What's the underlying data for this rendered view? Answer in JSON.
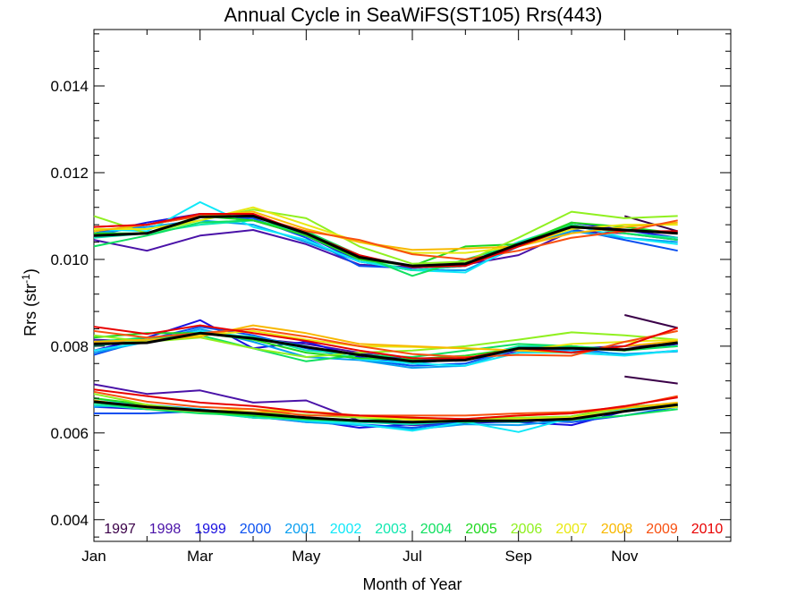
{
  "chart_data": {
    "type": "line",
    "title": "Annual Cycle in SeaWiFS(ST105) Rrs(443)",
    "xlabel": "Month of Year",
    "ylabel": "Rrs (str",
    "ylabel_sup": "-1",
    "ylabel_close": ")",
    "xlim": [
      1,
      13
    ],
    "ylim": [
      0.0035,
      0.0153
    ],
    "x_ticks": [
      {
        "value": 1,
        "label": "Jan"
      },
      {
        "value": 3,
        "label": "Mar"
      },
      {
        "value": 5,
        "label": "May"
      },
      {
        "value": 7,
        "label": "Jul"
      },
      {
        "value": 9,
        "label": "Sep"
      },
      {
        "value": 11,
        "label": "Nov"
      }
    ],
    "y_ticks": [
      {
        "value": 0.004,
        "label": "0.004"
      },
      {
        "value": 0.006,
        "label": "0.006"
      },
      {
        "value": 0.008,
        "label": "0.008"
      },
      {
        "value": 0.01,
        "label": "0.010"
      },
      {
        "value": 0.012,
        "label": "0.012"
      },
      {
        "value": 0.014,
        "label": "0.014"
      }
    ],
    "legend_position": "bottom",
    "x": [
      1,
      2,
      3,
      4,
      5,
      6,
      7,
      8,
      9,
      10,
      11,
      12
    ],
    "series": [
      {
        "name": "1997",
        "color": "#3a0048",
        "x": [
          11,
          12
        ],
        "upper": [
          0.011,
          0.01065
        ],
        "middle": [
          0.00872,
          0.00842
        ],
        "lower": [
          0.0073,
          0.00714
        ]
      },
      {
        "name": "1998",
        "color": "#4a12a8",
        "upper": [
          0.01045,
          0.0102,
          0.01055,
          0.01068,
          0.01035,
          0.00988,
          0.00982,
          0.00988,
          0.0101,
          0.01065,
          0.0106,
          0.01045
        ],
        "middle": [
          0.00815,
          0.0081,
          0.00835,
          0.00818,
          0.00805,
          0.00785,
          0.00768,
          0.0077,
          0.00785,
          0.00795,
          0.008,
          0.00805
        ],
        "lower": [
          0.00712,
          0.0069,
          0.00698,
          0.0067,
          0.00675,
          0.00628,
          0.00618,
          0.00622,
          0.00628,
          0.00638,
          0.0065,
          0.00665
        ]
      },
      {
        "name": "1999",
        "color": "#1a10e0",
        "upper": [
          0.0106,
          0.01085,
          0.01105,
          0.0109,
          0.01055,
          0.00995,
          0.00975,
          0.00985,
          0.0103,
          0.01085,
          0.01068,
          0.0105
        ],
        "middle": [
          0.0079,
          0.0082,
          0.0086,
          0.00795,
          0.0081,
          0.00775,
          0.0076,
          0.00772,
          0.0079,
          0.008,
          0.0079,
          0.00805
        ],
        "lower": [
          0.0066,
          0.00655,
          0.0065,
          0.00635,
          0.0063,
          0.00612,
          0.0062,
          0.00625,
          0.00625,
          0.00618,
          0.0065,
          0.00665
        ]
      },
      {
        "name": "2000",
        "color": "#0a50f0",
        "upper": [
          0.01055,
          0.0108,
          0.011,
          0.01095,
          0.0105,
          0.00985,
          0.0098,
          0.0099,
          0.0104,
          0.0107,
          0.01045,
          0.0102
        ],
        "middle": [
          0.0078,
          0.00815,
          0.00845,
          0.00825,
          0.00795,
          0.0077,
          0.00755,
          0.0076,
          0.00798,
          0.00795,
          0.0078,
          0.0079
        ],
        "lower": [
          0.00645,
          0.00645,
          0.0065,
          0.00638,
          0.00625,
          0.0062,
          0.00612,
          0.00625,
          0.0063,
          0.00625,
          0.0064,
          0.0066
        ]
      },
      {
        "name": "2001",
        "color": "#0a9ff0",
        "upper": [
          0.0106,
          0.01075,
          0.0109,
          0.0108,
          0.0104,
          0.00995,
          0.00975,
          0.00975,
          0.0103,
          0.01065,
          0.0105,
          0.0104
        ],
        "middle": [
          0.00785,
          0.0081,
          0.0084,
          0.0081,
          0.00775,
          0.00768,
          0.0075,
          0.00755,
          0.00795,
          0.0079,
          0.00782,
          0.00788
        ],
        "lower": [
          0.0066,
          0.00665,
          0.00655,
          0.0064,
          0.00625,
          0.00618,
          0.00608,
          0.0062,
          0.00618,
          0.0063,
          0.0065,
          0.0066
        ]
      },
      {
        "name": "2002",
        "color": "#10e8f8",
        "upper": [
          0.0107,
          0.01065,
          0.01132,
          0.01075,
          0.01045,
          0.00995,
          0.00975,
          0.0097,
          0.01035,
          0.0108,
          0.0105,
          0.01035
        ],
        "middle": [
          0.0079,
          0.0081,
          0.00835,
          0.0082,
          0.008,
          0.0077,
          0.0076,
          0.00755,
          0.00785,
          0.00785,
          0.00778,
          0.0079
        ],
        "lower": [
          0.0068,
          0.0066,
          0.00655,
          0.00642,
          0.00628,
          0.0062,
          0.00605,
          0.00625,
          0.00602,
          0.00635,
          0.00655,
          0.00665
        ]
      },
      {
        "name": "2003",
        "color": "#10e8b0",
        "upper": [
          0.0105,
          0.0106,
          0.0108,
          0.0109,
          0.0106,
          0.01,
          0.00975,
          0.00985,
          0.0104,
          0.0108,
          0.0106,
          0.0105
        ],
        "middle": [
          0.008,
          0.00815,
          0.0083,
          0.00822,
          0.0079,
          0.0078,
          0.00762,
          0.0077,
          0.008,
          0.008,
          0.00792,
          0.008
        ],
        "lower": [
          0.00665,
          0.00655,
          0.00648,
          0.00635,
          0.0063,
          0.00625,
          0.0062,
          0.00628,
          0.00625,
          0.00635,
          0.0065,
          0.00662
        ]
      },
      {
        "name": "2004",
        "color": "#10e060",
        "upper": [
          0.0103,
          0.01055,
          0.01085,
          0.0109,
          0.01065,
          0.0101,
          0.00962,
          0.01,
          0.01035,
          0.0108,
          0.0106,
          0.01045
        ],
        "middle": [
          0.0081,
          0.0082,
          0.00825,
          0.00795,
          0.00765,
          0.0078,
          0.00775,
          0.0079,
          0.00805,
          0.008,
          0.0079,
          0.008
        ],
        "lower": [
          0.0067,
          0.00655,
          0.00645,
          0.0064,
          0.00632,
          0.00628,
          0.00632,
          0.00625,
          0.0063,
          0.0063,
          0.0064,
          0.00655
        ]
      },
      {
        "name": "2005",
        "color": "#20d820",
        "upper": [
          0.0106,
          0.0106,
          0.011,
          0.0109,
          0.01055,
          0.01,
          0.00985,
          0.0103,
          0.01035,
          0.01085,
          0.01075,
          0.0106
        ],
        "middle": [
          0.0082,
          0.0083,
          0.0083,
          0.00815,
          0.00785,
          0.00772,
          0.0077,
          0.00778,
          0.00795,
          0.00795,
          0.0079,
          0.0081
        ],
        "lower": [
          0.0068,
          0.00665,
          0.0065,
          0.0064,
          0.00632,
          0.00628,
          0.00635,
          0.00628,
          0.00628,
          0.00638,
          0.0066,
          0.00668
        ]
      },
      {
        "name": "2006",
        "color": "#90f020",
        "upper": [
          0.011,
          0.0106,
          0.0109,
          0.01115,
          0.01095,
          0.0103,
          0.0099,
          0.00995,
          0.0105,
          0.0111,
          0.01095,
          0.011
        ],
        "middle": [
          0.00825,
          0.0081,
          0.0082,
          0.00795,
          0.00775,
          0.00785,
          0.0079,
          0.008,
          0.00815,
          0.00832,
          0.00825,
          0.00815
        ],
        "lower": [
          0.0069,
          0.00665,
          0.00652,
          0.00648,
          0.00642,
          0.00635,
          0.00632,
          0.00632,
          0.00635,
          0.00638,
          0.00658,
          0.00665
        ]
      },
      {
        "name": "2007",
        "color": "#e8e810",
        "upper": [
          0.0107,
          0.0107,
          0.0109,
          0.0112,
          0.0108,
          0.0104,
          0.01015,
          0.01015,
          0.0103,
          0.0107,
          0.0108,
          0.0108
        ],
        "middle": [
          0.00805,
          0.0081,
          0.00825,
          0.00835,
          0.00815,
          0.008,
          0.00798,
          0.00795,
          0.0079,
          0.00805,
          0.0081,
          0.00815
        ],
        "lower": [
          0.00672,
          0.00662,
          0.0065,
          0.00655,
          0.00648,
          0.00638,
          0.0063,
          0.0063,
          0.00632,
          0.00635,
          0.00652,
          0.0066
        ]
      },
      {
        "name": "2008",
        "color": "#f8b800",
        "upper": [
          0.01065,
          0.0108,
          0.011,
          0.0111,
          0.0107,
          0.0104,
          0.01022,
          0.01025,
          0.0103,
          0.0106,
          0.01075,
          0.01085
        ],
        "middle": [
          0.0081,
          0.00815,
          0.00822,
          0.00848,
          0.0083,
          0.00805,
          0.008,
          0.00795,
          0.0079,
          0.00785,
          0.008,
          0.00812
        ],
        "lower": [
          0.00675,
          0.00658,
          0.0065,
          0.00648,
          0.0065,
          0.0064,
          0.00635,
          0.00632,
          0.0064,
          0.00645,
          0.00658,
          0.0067
        ]
      },
      {
        "name": "2009",
        "color": "#f85010",
        "upper": [
          0.01075,
          0.0108,
          0.011,
          0.011,
          0.01065,
          0.01045,
          0.01012,
          0.01,
          0.0102,
          0.0105,
          0.01065,
          0.0109
        ],
        "middle": [
          0.00835,
          0.0082,
          0.0083,
          0.0084,
          0.00822,
          0.008,
          0.00782,
          0.00775,
          0.0078,
          0.00778,
          0.0081,
          0.00835
        ],
        "lower": [
          0.00695,
          0.00672,
          0.0066,
          0.00655,
          0.0064,
          0.0064,
          0.0064,
          0.0064,
          0.00645,
          0.00648,
          0.0066,
          0.00685
        ]
      },
      {
        "name": "2010",
        "color": "#e80000",
        "upper": [
          0.01075,
          0.0108,
          0.01105,
          0.01105,
          0.0106,
          0.0101,
          0.00982,
          0.00985,
          0.0103,
          0.01075,
          0.01065,
          0.01065
        ],
        "middle": [
          0.00845,
          0.00828,
          0.00848,
          0.0083,
          0.00812,
          0.0079,
          0.00772,
          0.00772,
          0.00795,
          0.00785,
          0.008,
          0.00842
        ],
        "lower": [
          0.007,
          0.00685,
          0.0067,
          0.00662,
          0.00648,
          0.0064,
          0.00635,
          0.00632,
          0.0064,
          0.00645,
          0.00662,
          0.00682
        ]
      }
    ],
    "climatology": {
      "color": "#000000",
      "upper": [
        0.01055,
        0.0106,
        0.01098,
        0.011,
        0.0106,
        0.01005,
        0.00985,
        0.0099,
        0.01035,
        0.01075,
        0.01068,
        0.0106
      ],
      "middle": [
        0.00805,
        0.00808,
        0.0083,
        0.00818,
        0.00798,
        0.0078,
        0.00765,
        0.00768,
        0.00795,
        0.00795,
        0.00792,
        0.00808
      ],
      "lower": [
        0.00672,
        0.0066,
        0.00652,
        0.00645,
        0.00635,
        0.00628,
        0.00625,
        0.00628,
        0.00628,
        0.00632,
        0.0065,
        0.00665
      ]
    }
  }
}
